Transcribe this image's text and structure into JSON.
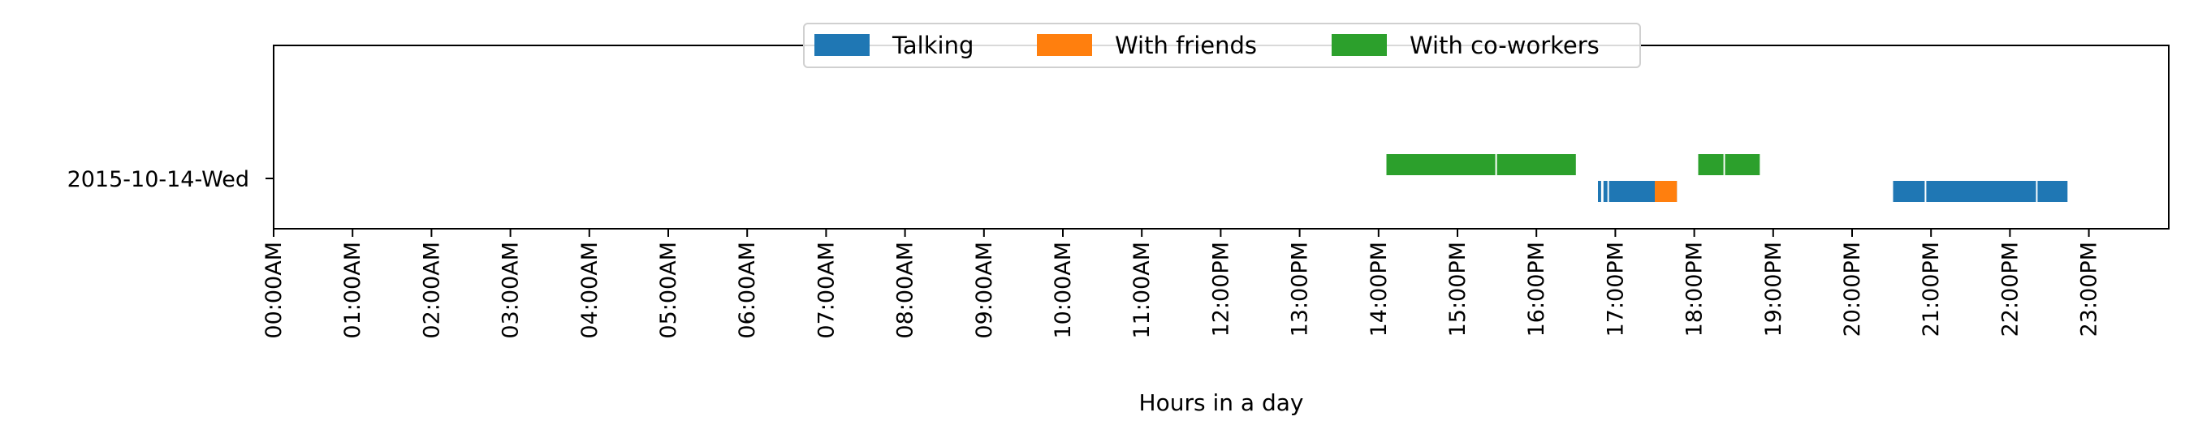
{
  "chart_data": {
    "type": "timeline",
    "xlabel": "Hours in a day",
    "ylabel": "",
    "xlim": [
      0,
      24
    ],
    "x_tick_values": [
      0,
      1,
      2,
      3,
      4,
      5,
      6,
      7,
      8,
      9,
      10,
      11,
      12,
      13,
      14,
      15,
      16,
      17,
      18,
      19,
      20,
      21,
      22,
      23
    ],
    "x_tick_labels": [
      "00:00AM",
      "01:00AM",
      "02:00AM",
      "03:00AM",
      "04:00AM",
      "05:00AM",
      "06:00AM",
      "07:00AM",
      "08:00AM",
      "09:00AM",
      "10:00AM",
      "11:00AM",
      "12:00PM",
      "13:00PM",
      "14:00PM",
      "15:00PM",
      "16:00PM",
      "17:00PM",
      "18:00PM",
      "19:00PM",
      "20:00PM",
      "21:00PM",
      "22:00PM",
      "23:00PM"
    ],
    "y_tick_labels": [
      "2015-10-14-Wed"
    ],
    "grid": false,
    "legend_position": "top-center",
    "series": [
      {
        "name": "Talking",
        "color": "#1f77b4",
        "lane": "lower",
        "intervals": [
          [
            16.78,
            16.82
          ],
          [
            16.85,
            16.9
          ],
          [
            16.92,
            17.78
          ],
          [
            20.52,
            20.92
          ],
          [
            20.94,
            22.33
          ],
          [
            22.35,
            22.73
          ]
        ]
      },
      {
        "name": "With friends",
        "color": "#ff7f0e",
        "lane": "lower",
        "intervals": [
          [
            17.5,
            17.78
          ]
        ]
      },
      {
        "name": "With co-workers",
        "color": "#2ca02c",
        "lane": "upper",
        "intervals": [
          [
            14.1,
            15.48
          ],
          [
            15.5,
            16.5
          ],
          [
            18.05,
            18.37
          ],
          [
            18.39,
            18.83
          ]
        ]
      }
    ]
  }
}
